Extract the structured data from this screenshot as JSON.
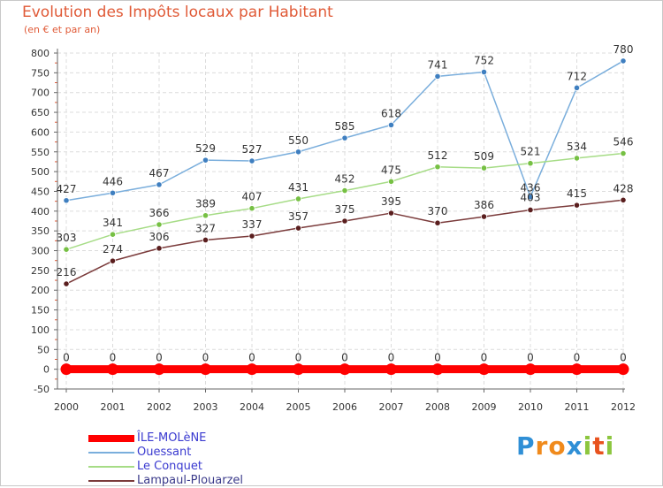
{
  "title": "Evolution des Impôts locaux par Habitant",
  "subtitle": "(en € et par an)",
  "logo": {
    "letters": [
      "P",
      "r",
      "o",
      "x",
      "i",
      "t",
      "i"
    ],
    "colors": [
      "#2f8fd6",
      "#f08a1c",
      "#f08a1c",
      "#2f8fd6",
      "#8cc63e",
      "#e8521e",
      "#8cc63e"
    ]
  },
  "chart_data": {
    "type": "line",
    "title": "Evolution des Impôts locaux par Habitant",
    "subtitle": "(en € et par an)",
    "xlabel": "",
    "ylabel": "",
    "ylim": [
      -50,
      800
    ],
    "yticks": [
      -50,
      0,
      50,
      100,
      150,
      200,
      250,
      300,
      350,
      400,
      450,
      500,
      550,
      600,
      650,
      700,
      750,
      800
    ],
    "ytick_labels": [
      "-50",
      "0",
      "50",
      "100",
      "150",
      "200",
      "250",
      "300",
      "350",
      "400",
      "450",
      "500",
      "550",
      "600",
      "650",
      "700",
      "750",
      "800"
    ],
    "categories": [
      "2000",
      "2001",
      "2002",
      "2003",
      "2004",
      "2005",
      "2006",
      "2007",
      "2008",
      "2009",
      "2010",
      "2011",
      "2012"
    ],
    "grid": true,
    "legend_position": "bottom-left",
    "series": [
      {
        "name": "ÎLE-MOLèNE",
        "color": "#ff0000",
        "marker_color": "#ff0000",
        "width": 9,
        "values": [
          0,
          0,
          0,
          0,
          0,
          0,
          0,
          0,
          0,
          0,
          0,
          0,
          0
        ],
        "labels": [
          "0",
          "0",
          "0",
          "0",
          "0",
          "0",
          "0",
          "0",
          "0",
          "0",
          "0",
          "0",
          "0"
        ]
      },
      {
        "name": "Ouessant",
        "color": "#7aaedc",
        "marker_color": "#3f7fc0",
        "width": 1.5,
        "values": [
          427,
          446,
          467,
          529,
          527,
          550,
          585,
          618,
          741,
          752,
          436,
          712,
          780
        ],
        "labels": [
          "427",
          "446",
          "467",
          "529",
          "527",
          "550",
          "585",
          "618",
          "741",
          "752",
          "436",
          "712",
          "780"
        ]
      },
      {
        "name": "Le Conquet",
        "color": "#a6dc86",
        "marker_color": "#76c043",
        "width": 1.5,
        "values": [
          303,
          341,
          366,
          389,
          407,
          431,
          452,
          475,
          512,
          509,
          521,
          534,
          546
        ],
        "labels": [
          "303",
          "341",
          "366",
          "389",
          "407",
          "431",
          "452",
          "475",
          "512",
          "509",
          "521",
          "534",
          "546"
        ]
      },
      {
        "name": "Lampaul-Plouarzel",
        "color": "#7a3a3a",
        "marker_color": "#5a1e1e",
        "width": 1.5,
        "values": [
          216,
          274,
          306,
          327,
          337,
          357,
          375,
          395,
          370,
          386,
          403,
          415,
          428
        ],
        "labels": [
          "216",
          "274",
          "306",
          "327",
          "337",
          "357",
          "375",
          "395",
          "370",
          "386",
          "403",
          "415",
          "428"
        ]
      }
    ]
  }
}
